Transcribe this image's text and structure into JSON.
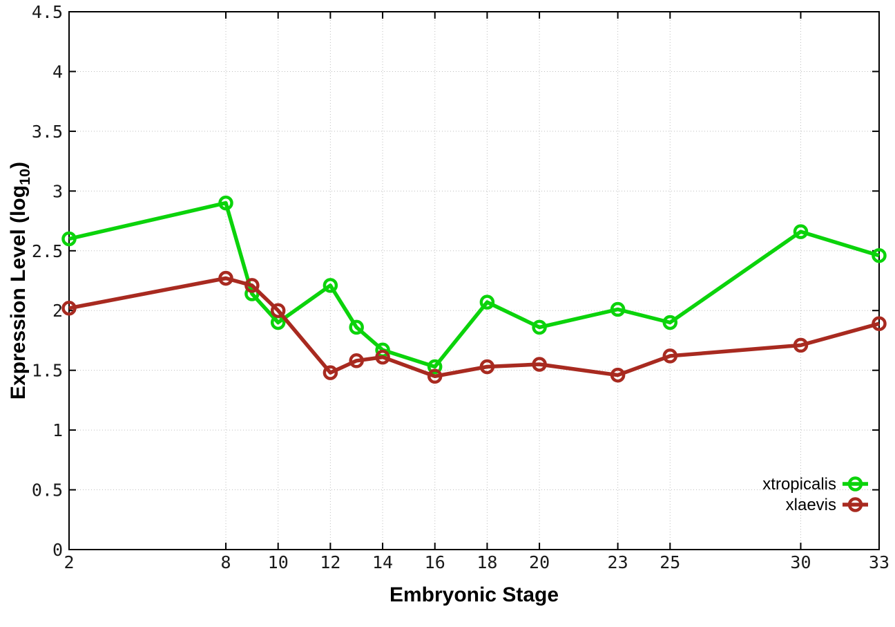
{
  "figure": {
    "background": "#ffffff"
  },
  "chart_data": {
    "type": "line",
    "title": "",
    "xlabel": "Embryonic Stage",
    "ylabel": {
      "prefix": "Expression Level (log",
      "sub": "10",
      "suffix": ")"
    },
    "x": [
      2,
      8,
      9,
      10,
      12,
      13,
      14,
      16,
      18,
      20,
      23,
      25,
      30,
      33
    ],
    "series": [
      {
        "name": "xtropicalis",
        "color": "#0bd30b",
        "marker": "open-circle",
        "values": [
          2.6,
          2.9,
          2.14,
          1.9,
          2.21,
          1.86,
          1.67,
          1.53,
          2.07,
          1.86,
          2.01,
          1.9,
          2.66,
          2.46
        ]
      },
      {
        "name": "xlaevis",
        "color": "#a82a20",
        "marker": "open-circle",
        "values": [
          2.02,
          2.27,
          2.21,
          2.0,
          1.48,
          1.58,
          1.61,
          1.45,
          1.53,
          1.55,
          1.46,
          1.62,
          1.71,
          1.89
        ]
      }
    ],
    "xlim": [
      2,
      33
    ],
    "ylim": [
      0,
      4.5
    ],
    "xticks": [
      2,
      8,
      10,
      12,
      14,
      16,
      18,
      20,
      23,
      25,
      30,
      33
    ],
    "xtick_labels": [
      "2",
      "8",
      "10",
      "12",
      "14",
      "16",
      "18",
      "20",
      "23",
      "25",
      "30",
      "33"
    ],
    "yticks": [
      0,
      0.5,
      1,
      1.5,
      2,
      2.5,
      3,
      3.5,
      4,
      4.5
    ],
    "ytick_labels": [
      "0",
      "0.5",
      "1",
      "1.5",
      "2",
      "2.5",
      "3",
      "3.5",
      "4",
      "4.5"
    ],
    "grid": true,
    "grid_style": "dotted",
    "legend": {
      "position": "inside-bottom-right",
      "entries": [
        "xtropicalis",
        "xlaevis"
      ]
    },
    "colors": {
      "axis": "#000000",
      "grid": "#bdbdbd",
      "tick_text": "#1a1a1a"
    }
  }
}
